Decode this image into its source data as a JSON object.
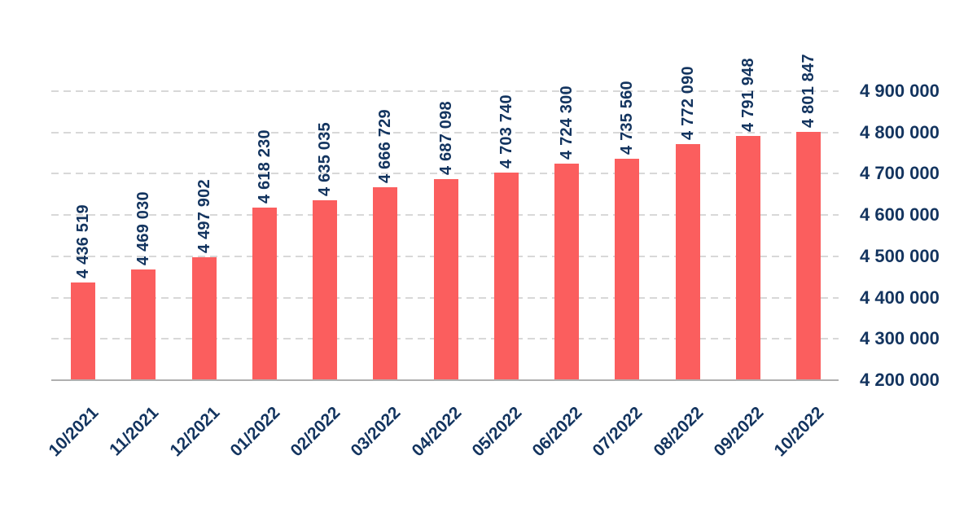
{
  "chart_data": {
    "type": "bar",
    "categories": [
      "10/2021",
      "11/2021",
      "12/2021",
      "01/2022",
      "02/2022",
      "03/2022",
      "04/2022",
      "05/2022",
      "06/2022",
      "07/2022",
      "08/2022",
      "09/2022",
      "10/2022"
    ],
    "values": [
      4436519,
      4469030,
      4497902,
      4618230,
      4635035,
      4666729,
      4687098,
      4703740,
      4724300,
      4735560,
      4772090,
      4791948,
      4801847
    ],
    "value_labels": [
      "4 436 519",
      "4 469 030",
      "4 497 902",
      "4 618 230",
      "4 635 035",
      "4 666 729",
      "4 687 098",
      "4 703 740",
      "4 724 300",
      "4 735 560",
      "4 772 090",
      "4 791 948",
      "4 801 847"
    ],
    "y_axis": {
      "min": 4200000,
      "max": 4900000,
      "ticks": [
        {
          "value": 4900000,
          "label": "4 900 000"
        },
        {
          "value": 4800000,
          "label": "4 800 000"
        },
        {
          "value": 4700000,
          "label": "4 700 000"
        },
        {
          "value": 4600000,
          "label": "4 600 000"
        },
        {
          "value": 4500000,
          "label": "4 500 000"
        },
        {
          "value": 4400000,
          "label": "4 400 000"
        },
        {
          "value": 4300000,
          "label": "4 300 000"
        },
        {
          "value": 4200000,
          "label": "4 200 000"
        }
      ]
    },
    "grid": "horizontal-dashed",
    "legend": "none",
    "colors": {
      "bar": "#fb5e5e",
      "text": "#13345f",
      "gridline": "#d8d8d8",
      "axis_line": "#b0b0b0",
      "background": "#ffffff"
    }
  }
}
